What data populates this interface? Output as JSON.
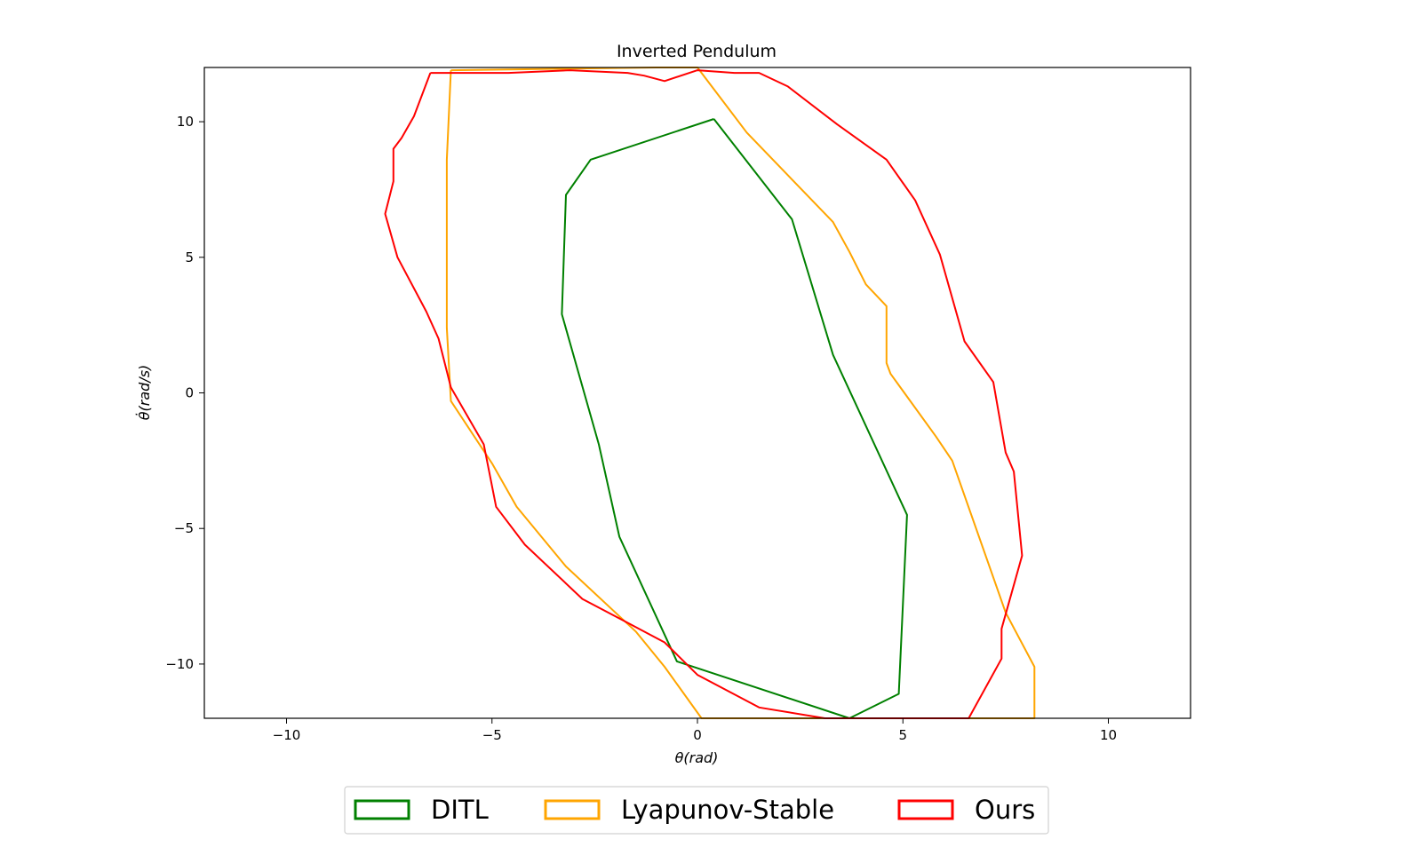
{
  "chart_data": {
    "type": "line",
    "title": "Inverted Pendulum",
    "xlabel": "θ(rad)",
    "ylabel": "θ̇(rad/s)",
    "xlim": [
      -12,
      12
    ],
    "ylim": [
      -12,
      12
    ],
    "xticks": [
      -10,
      -5,
      0,
      5,
      10
    ],
    "yticks": [
      -10,
      -5,
      0,
      5,
      10
    ],
    "xtick_labels": [
      "−10",
      "−5",
      "0",
      "5",
      "10"
    ],
    "ytick_labels": [
      "−10",
      "−5",
      "0",
      "5",
      "10"
    ],
    "grid": false,
    "legend_position": "bottom-center",
    "series": [
      {
        "name": "DITL",
        "color": "#008000",
        "points": [
          [
            0.4,
            10.1
          ],
          [
            2.3,
            6.4
          ],
          [
            3.3,
            1.4
          ],
          [
            5.1,
            -4.5
          ],
          [
            4.9,
            -11.1
          ],
          [
            3.7,
            -12.0
          ],
          [
            -0.5,
            -9.9
          ],
          [
            -1.9,
            -5.3
          ],
          [
            -2.4,
            -1.9
          ],
          [
            -3.3,
            2.9
          ],
          [
            -3.2,
            7.3
          ],
          [
            -2.6,
            8.6
          ],
          [
            0.4,
            10.1
          ]
        ]
      },
      {
        "name": "Lyapunov-Stable",
        "color": "#FFA500",
        "points": [
          [
            -6.0,
            11.9
          ],
          [
            -6.1,
            8.6
          ],
          [
            -6.1,
            4.0
          ],
          [
            -6.1,
            2.4
          ],
          [
            -6.0,
            -0.3
          ],
          [
            -5.0,
            -2.6
          ],
          [
            -4.4,
            -4.2
          ],
          [
            -3.2,
            -6.4
          ],
          [
            -1.5,
            -8.8
          ],
          [
            -0.8,
            -10.1
          ],
          [
            0.1,
            -12.0
          ],
          [
            8.2,
            -12.0
          ],
          [
            8.2,
            -10.1
          ],
          [
            7.5,
            -8.1
          ],
          [
            6.2,
            -2.5
          ],
          [
            5.8,
            -1.6
          ],
          [
            4.7,
            0.7
          ],
          [
            4.6,
            1.1
          ],
          [
            4.6,
            3.2
          ],
          [
            4.1,
            4.0
          ],
          [
            3.7,
            5.2
          ],
          [
            3.3,
            6.3
          ],
          [
            1.2,
            9.6
          ],
          [
            0.1,
            11.8
          ],
          [
            0.0,
            12.0
          ],
          [
            -1.0,
            12.0
          ],
          [
            -6.0,
            11.9
          ]
        ]
      },
      {
        "name": "Ours",
        "color": "#FF0000",
        "points": [
          [
            -6.5,
            11.8
          ],
          [
            -5.4,
            11.8
          ],
          [
            -4.6,
            11.8
          ],
          [
            -3.1,
            11.9
          ],
          [
            -1.7,
            11.8
          ],
          [
            -1.3,
            11.7
          ],
          [
            -0.8,
            11.5
          ],
          [
            0.0,
            11.9
          ],
          [
            0.9,
            11.8
          ],
          [
            1.5,
            11.8
          ],
          [
            2.2,
            11.3
          ],
          [
            3.4,
            9.9
          ],
          [
            4.6,
            8.6
          ],
          [
            5.3,
            7.1
          ],
          [
            5.9,
            5.1
          ],
          [
            6.5,
            1.9
          ],
          [
            7.2,
            0.4
          ],
          [
            7.5,
            -2.2
          ],
          [
            7.7,
            -2.9
          ],
          [
            7.9,
            -6.0
          ],
          [
            7.4,
            -8.7
          ],
          [
            7.4,
            -9.8
          ],
          [
            6.6,
            -12.0
          ],
          [
            3.1,
            -12.0
          ],
          [
            1.5,
            -11.6
          ],
          [
            0.0,
            -10.4
          ],
          [
            -0.8,
            -9.2
          ],
          [
            -1.8,
            -8.4
          ],
          [
            -2.8,
            -7.6
          ],
          [
            -4.2,
            -5.6
          ],
          [
            -4.9,
            -4.2
          ],
          [
            -5.2,
            -1.9
          ],
          [
            -6.0,
            0.2
          ],
          [
            -6.3,
            2.0
          ],
          [
            -6.6,
            3.0
          ],
          [
            -7.3,
            5.0
          ],
          [
            -7.6,
            6.6
          ],
          [
            -7.4,
            7.8
          ],
          [
            -7.4,
            9.0
          ],
          [
            -7.2,
            9.4
          ],
          [
            -6.9,
            10.2
          ],
          [
            -6.5,
            11.8
          ]
        ]
      }
    ]
  }
}
